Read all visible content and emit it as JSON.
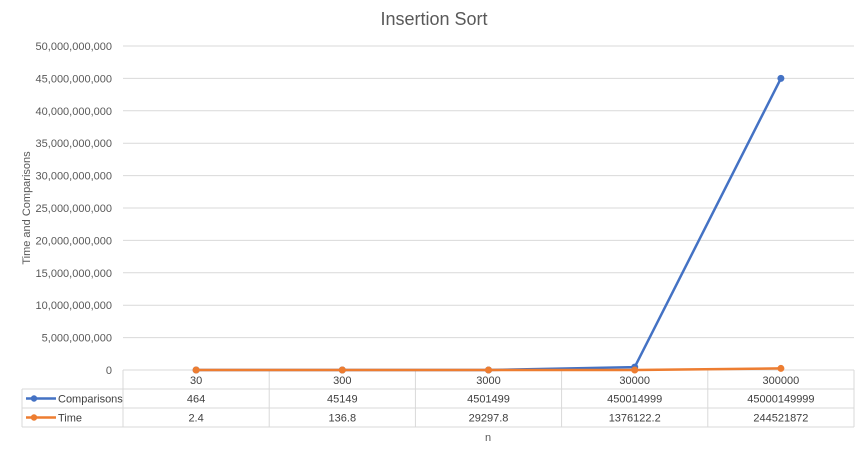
{
  "chart_data": {
    "type": "line",
    "title": "Insertion Sort",
    "xlabel": "n",
    "ylabel": "Time and Comparisons",
    "categories": [
      "30",
      "300",
      "3000",
      "30000",
      "300000"
    ],
    "ylim": [
      0,
      50000000000
    ],
    "yticks": [
      0,
      5000000000,
      10000000000,
      15000000000,
      20000000000,
      25000000000,
      30000000000,
      35000000000,
      40000000000,
      45000000000,
      50000000000
    ],
    "ytick_labels": [
      "0",
      "5,000,000,000",
      "10,000,000,000",
      "15,000,000,000",
      "20,000,000,000",
      "25,000,000,000",
      "30,000,000,000",
      "35,000,000,000",
      "40,000,000,000",
      "45,000,000,000",
      "50,000,000,000"
    ],
    "grid": true,
    "legend": "data-table",
    "series": [
      {
        "name": "Comparisons",
        "color": "#4472c4",
        "values": [
          464,
          45149,
          4501499,
          450014999,
          45000149999
        ],
        "labels": [
          "464",
          "45149",
          "4501499",
          "450014999",
          "45000149999"
        ]
      },
      {
        "name": "Time",
        "color": "#ed7d31",
        "values": [
          2.4,
          136.8,
          29297.8,
          1376122.2,
          244521872
        ],
        "labels": [
          "2.4",
          "136.8",
          "29297.8",
          "1376122.2",
          "244521872"
        ]
      }
    ]
  }
}
